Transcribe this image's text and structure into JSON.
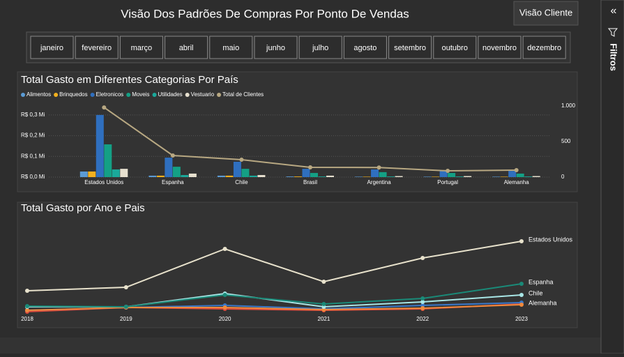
{
  "header": {
    "title": "Visão Dos Padrões De Compras Por Ponto De Vendas",
    "button": "Visão Cliente"
  },
  "months": [
    "janeiro",
    "fevereiro",
    "março",
    "abril",
    "maio",
    "junho",
    "julho",
    "agosto",
    "setembro",
    "outubro",
    "novembro",
    "dezembro"
  ],
  "filters_pane": {
    "label": "Filtros"
  },
  "chart_data": [
    {
      "type": "bar",
      "title": "Total Gasto em Diferentes Categorias Por País",
      "categories": [
        "Estados Unidos",
        "Espanha",
        "Chile",
        "Brasil",
        "Argentina",
        "Portugal",
        "Alemanha"
      ],
      "series": [
        {
          "name": "Alimentos",
          "color": "#5b9bd5",
          "values": [
            0.027,
            0.007,
            0.007,
            0.003,
            0.002,
            0.002,
            0.002
          ]
        },
        {
          "name": "Brinquedos",
          "color": "#f2b01e",
          "values": [
            0.027,
            0.007,
            0.007,
            0.003,
            0.002,
            0.002,
            0.002
          ]
        },
        {
          "name": "Eletronicos",
          "color": "#2f6fbf",
          "values": [
            0.3,
            0.094,
            0.074,
            0.04,
            0.037,
            0.03,
            0.03
          ]
        },
        {
          "name": "Moveis",
          "color": "#14a085",
          "values": [
            0.158,
            0.05,
            0.04,
            0.02,
            0.024,
            0.02,
            0.017
          ]
        },
        {
          "name": "Utilidades",
          "color": "#1aa89a",
          "values": [
            0.037,
            0.01,
            0.007,
            0.003,
            0.003,
            0.003,
            0.003
          ]
        },
        {
          "name": "Vestuario",
          "color": "#e6e0cf",
          "values": [
            0.04,
            0.017,
            0.01,
            0.007,
            0.005,
            0.005,
            0.005
          ]
        },
        {
          "name": "Total de Clientes",
          "color": "#b8a882",
          "axis": "y2",
          "values": [
            980,
            304,
            245,
            137,
            135,
            88,
            98
          ]
        }
      ],
      "ylim": [
        0,
        0.35
      ],
      "yticks": [
        {
          "value": 0,
          "label": "R$ 0,0 Mi"
        },
        {
          "value": 0.1,
          "label": "R$ 0,1 Mi"
        },
        {
          "value": 0.2,
          "label": "R$ 0,2 Mi"
        },
        {
          "value": 0.3,
          "label": "R$ 0,3 Mi"
        }
      ],
      "y2lim": [
        0,
        1020
      ],
      "y2ticks": [
        0,
        500,
        {
          "value": 1000,
          "label": "1.000"
        }
      ],
      "grid": true
    },
    {
      "type": "line",
      "title": "Total Gasto por Ano e Pais",
      "x": [
        2018,
        2019,
        2020,
        2021,
        2022,
        2023
      ],
      "xlim": [
        2018,
        2023
      ],
      "ylim": [
        0,
        1.3
      ],
      "series": [
        {
          "color": "#e04a3c",
          "values": [
            0.08,
            0.14,
            0.12,
            0.1,
            0.12,
            0.19
          ]
        },
        {
          "color": "#3a78c8",
          "values": [
            0.1,
            0.14,
            0.17,
            0.12,
            0.17,
            0.21
          ]
        },
        {
          "name": "Alemanha",
          "color": "#f08a3c",
          "values": [
            0.1,
            0.14,
            0.14,
            0.11,
            0.13,
            0.18
          ]
        },
        {
          "name": "Chile",
          "color": "#a8e6e6",
          "values": [
            0.15,
            0.15,
            0.34,
            0.15,
            0.22,
            0.32
          ]
        },
        {
          "name": "Espanha",
          "color": "#1a8a78",
          "values": [
            0.16,
            0.15,
            0.32,
            0.19,
            0.27,
            0.48
          ]
        },
        {
          "name": "Estados Unidos",
          "color": "#e8e2cc",
          "values": [
            0.38,
            0.43,
            0.98,
            0.51,
            0.85,
            1.09
          ]
        }
      ]
    }
  ]
}
